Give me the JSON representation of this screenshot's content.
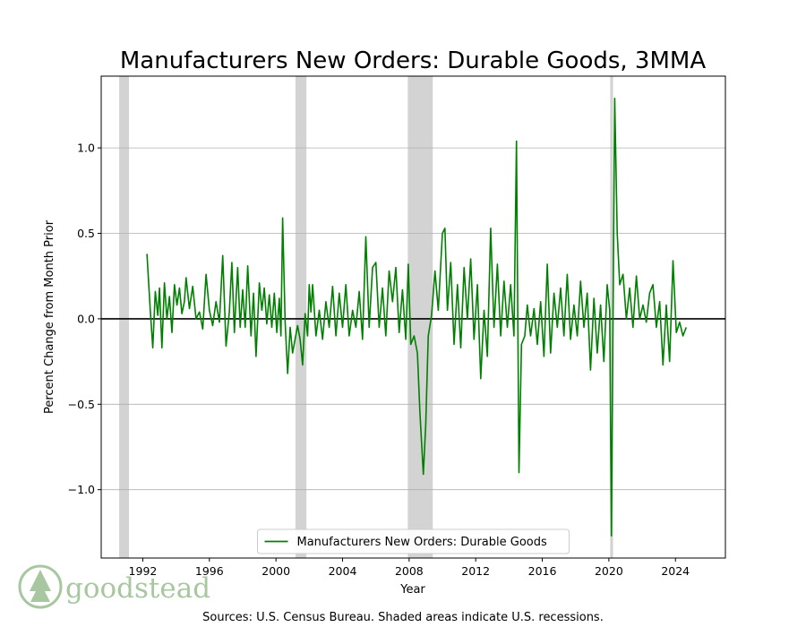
{
  "chart_data": {
    "type": "line",
    "title": "Manufacturers New Orders: Durable Goods, 3MMA",
    "xlabel": "Year",
    "ylabel": "Percent Change from Month Prior",
    "xlim": [
      1989.5,
      2027.0
    ],
    "ylim": [
      -1.4,
      1.42
    ],
    "xticks": [
      1992,
      1996,
      2000,
      2004,
      2008,
      2012,
      2016,
      2020,
      2024
    ],
    "yticks": [
      -1.0,
      -0.5,
      0.0,
      0.5,
      1.0
    ],
    "ytick_labels": [
      "−1.0",
      "−0.5",
      "0.0",
      "0.5",
      "1.0"
    ],
    "grid": "horizontal",
    "zero_line": true,
    "legend_position": "lower-center",
    "recessions": [
      {
        "start": 1990.58,
        "end": 1991.17
      },
      {
        "start": 2001.17,
        "end": 2001.83
      },
      {
        "start": 2007.92,
        "end": 2009.42
      },
      {
        "start": 2020.08,
        "end": 2020.25
      }
    ],
    "series": [
      {
        "name": "Manufacturers New Orders: Durable Goods",
        "color": "#008000",
        "points": [
          [
            1992.25,
            0.38
          ],
          [
            1992.45,
            0.05
          ],
          [
            1992.6,
            -0.17
          ],
          [
            1992.75,
            0.16
          ],
          [
            1992.9,
            0.02
          ],
          [
            1993.0,
            0.18
          ],
          [
            1993.15,
            -0.17
          ],
          [
            1993.3,
            0.21
          ],
          [
            1993.45,
            0.0
          ],
          [
            1993.6,
            0.13
          ],
          [
            1993.75,
            -0.08
          ],
          [
            1993.9,
            0.2
          ],
          [
            1994.05,
            0.08
          ],
          [
            1994.2,
            0.18
          ],
          [
            1994.35,
            0.03
          ],
          [
            1994.5,
            0.1
          ],
          [
            1994.6,
            0.24
          ],
          [
            1994.8,
            0.06
          ],
          [
            1995.0,
            0.19
          ],
          [
            1995.2,
            0.0
          ],
          [
            1995.4,
            0.04
          ],
          [
            1995.6,
            -0.06
          ],
          [
            1995.8,
            0.26
          ],
          [
            1996.0,
            0.05
          ],
          [
            1996.2,
            -0.04
          ],
          [
            1996.4,
            0.1
          ],
          [
            1996.6,
            -0.02
          ],
          [
            1996.8,
            0.37
          ],
          [
            1997.0,
            -0.16
          ],
          [
            1997.2,
            0.04
          ],
          [
            1997.35,
            0.33
          ],
          [
            1997.5,
            -0.08
          ],
          [
            1997.7,
            0.3
          ],
          [
            1997.85,
            -0.05
          ],
          [
            1998.0,
            0.17
          ],
          [
            1998.15,
            -0.05
          ],
          [
            1998.3,
            0.31
          ],
          [
            1998.5,
            -0.1
          ],
          [
            1998.65,
            0.15
          ],
          [
            1998.8,
            -0.22
          ],
          [
            1999.0,
            0.21
          ],
          [
            1999.15,
            0.05
          ],
          [
            1999.3,
            0.18
          ],
          [
            1999.45,
            -0.03
          ],
          [
            1999.6,
            0.14
          ],
          [
            1999.75,
            -0.05
          ],
          [
            1999.9,
            0.15
          ],
          [
            2000.05,
            -0.08
          ],
          [
            2000.2,
            0.12
          ],
          [
            2000.3,
            -0.1
          ],
          [
            2000.4,
            0.59
          ],
          [
            2000.55,
            -0.02
          ],
          [
            2000.7,
            -0.32
          ],
          [
            2000.85,
            -0.05
          ],
          [
            2001.0,
            -0.2
          ],
          [
            2001.15,
            -0.12
          ],
          [
            2001.3,
            -0.04
          ],
          [
            2001.45,
            -0.12
          ],
          [
            2001.6,
            -0.27
          ],
          [
            2001.75,
            0.03
          ],
          [
            2001.9,
            -0.1
          ],
          [
            2002.0,
            0.2
          ],
          [
            2002.1,
            0.04
          ],
          [
            2002.2,
            0.2
          ],
          [
            2002.4,
            -0.1
          ],
          [
            2002.6,
            0.05
          ],
          [
            2002.8,
            -0.12
          ],
          [
            2003.0,
            0.1
          ],
          [
            2003.2,
            -0.05
          ],
          [
            2003.4,
            0.19
          ],
          [
            2003.6,
            -0.1
          ],
          [
            2003.8,
            0.15
          ],
          [
            2004.0,
            -0.05
          ],
          [
            2004.2,
            0.2
          ],
          [
            2004.4,
            -0.1
          ],
          [
            2004.6,
            0.05
          ],
          [
            2004.8,
            -0.05
          ],
          [
            2005.0,
            0.16
          ],
          [
            2005.2,
            -0.12
          ],
          [
            2005.4,
            0.48
          ],
          [
            2005.6,
            -0.05
          ],
          [
            2005.8,
            0.3
          ],
          [
            2006.0,
            0.33
          ],
          [
            2006.2,
            -0.05
          ],
          [
            2006.4,
            0.18
          ],
          [
            2006.6,
            -0.1
          ],
          [
            2006.8,
            0.28
          ],
          [
            2007.0,
            0.1
          ],
          [
            2007.2,
            0.3
          ],
          [
            2007.4,
            -0.08
          ],
          [
            2007.6,
            0.17
          ],
          [
            2007.8,
            -0.12
          ],
          [
            2007.95,
            0.32
          ],
          [
            2008.1,
            -0.15
          ],
          [
            2008.3,
            -0.1
          ],
          [
            2008.5,
            -0.2
          ],
          [
            2008.65,
            -0.55
          ],
          [
            2008.85,
            -0.91
          ],
          [
            2009.0,
            -0.62
          ],
          [
            2009.15,
            -0.1
          ],
          [
            2009.35,
            0.02
          ],
          [
            2009.55,
            0.28
          ],
          [
            2009.75,
            0.05
          ],
          [
            2010.0,
            0.5
          ],
          [
            2010.15,
            0.53
          ],
          [
            2010.3,
            0.05
          ],
          [
            2010.5,
            0.33
          ],
          [
            2010.7,
            -0.15
          ],
          [
            2010.9,
            0.2
          ],
          [
            2011.1,
            -0.17
          ],
          [
            2011.3,
            0.3
          ],
          [
            2011.5,
            0.0
          ],
          [
            2011.7,
            0.35
          ],
          [
            2011.9,
            -0.12
          ],
          [
            2012.1,
            0.2
          ],
          [
            2012.3,
            -0.35
          ],
          [
            2012.5,
            0.05
          ],
          [
            2012.7,
            -0.22
          ],
          [
            2012.9,
            0.53
          ],
          [
            2013.1,
            -0.05
          ],
          [
            2013.3,
            0.32
          ],
          [
            2013.5,
            -0.1
          ],
          [
            2013.7,
            0.22
          ],
          [
            2013.9,
            -0.05
          ],
          [
            2014.1,
            0.2
          ],
          [
            2014.3,
            -0.1
          ],
          [
            2014.45,
            1.04
          ],
          [
            2014.6,
            -0.9
          ],
          [
            2014.75,
            -0.15
          ],
          [
            2014.95,
            -0.1
          ],
          [
            2015.1,
            0.08
          ],
          [
            2015.3,
            -0.1
          ],
          [
            2015.5,
            0.06
          ],
          [
            2015.7,
            -0.15
          ],
          [
            2015.9,
            0.1
          ],
          [
            2016.1,
            -0.22
          ],
          [
            2016.3,
            0.32
          ],
          [
            2016.5,
            -0.2
          ],
          [
            2016.7,
            0.15
          ],
          [
            2016.9,
            -0.05
          ],
          [
            2017.1,
            0.18
          ],
          [
            2017.3,
            -0.1
          ],
          [
            2017.5,
            0.26
          ],
          [
            2017.7,
            -0.12
          ],
          [
            2017.9,
            0.08
          ],
          [
            2018.1,
            -0.1
          ],
          [
            2018.3,
            0.22
          ],
          [
            2018.5,
            -0.05
          ],
          [
            2018.7,
            0.15
          ],
          [
            2018.9,
            -0.3
          ],
          [
            2019.1,
            0.12
          ],
          [
            2019.3,
            -0.2
          ],
          [
            2019.5,
            0.08
          ],
          [
            2019.7,
            -0.25
          ],
          [
            2019.9,
            0.2
          ],
          [
            2020.05,
            0.05
          ],
          [
            2020.15,
            -1.27
          ],
          [
            2020.35,
            1.29
          ],
          [
            2020.5,
            0.5
          ],
          [
            2020.65,
            0.2
          ],
          [
            2020.85,
            0.26
          ],
          [
            2021.05,
            0.0
          ],
          [
            2021.25,
            0.18
          ],
          [
            2021.45,
            -0.05
          ],
          [
            2021.65,
            0.25
          ],
          [
            2021.85,
            0.0
          ],
          [
            2022.05,
            0.08
          ],
          [
            2022.25,
            -0.02
          ],
          [
            2022.45,
            0.15
          ],
          [
            2022.65,
            0.2
          ],
          [
            2022.85,
            -0.05
          ],
          [
            2023.05,
            0.1
          ],
          [
            2023.25,
            -0.27
          ],
          [
            2023.45,
            0.08
          ],
          [
            2023.65,
            -0.25
          ],
          [
            2023.85,
            0.34
          ],
          [
            2024.05,
            -0.08
          ],
          [
            2024.25,
            -0.02
          ],
          [
            2024.45,
            -0.1
          ],
          [
            2024.65,
            -0.05
          ]
        ]
      }
    ]
  },
  "source_note": "Sources: U.S. Census Bureau. Shaded areas indicate U.S. recessions.",
  "logo": {
    "text": "goodstead",
    "color": "#a8c7a0"
  }
}
